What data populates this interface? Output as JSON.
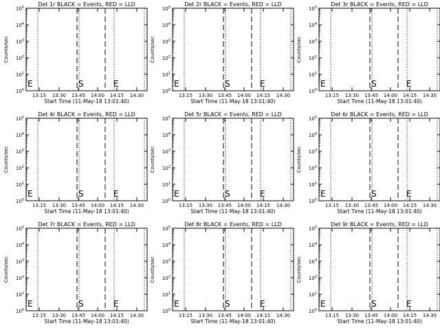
{
  "colors": {
    "background": "#ffffff",
    "foreground": "#000000"
  },
  "start_time_label": "Start Time (11-May-18 13:01:40)",
  "ylabel": "Counts/sec",
  "chart_data": [
    {
      "type": "line",
      "title": "Det 1r BLACK = Events, RED = LLD",
      "xticks": [
        "13:15",
        "13:30",
        "13:45",
        "14:00",
        "14:15",
        "14:30"
      ],
      "ytick_exponents": [
        "0",
        "1",
        "2",
        "3",
        "4",
        "5"
      ],
      "ylim": [
        1,
        100000
      ],
      "series": [],
      "markers": [
        {
          "label": "E"
        },
        {
          "label": "S"
        },
        {
          "label": "E"
        }
      ]
    },
    {
      "type": "line",
      "title": "Det 2r BLACK = Events, RED = LLD",
      "xticks": [
        "13:15",
        "13:30",
        "13:45",
        "14:00",
        "14:15",
        "14:30"
      ],
      "ytick_exponents": [
        "0",
        "1",
        "2",
        "3",
        "4",
        "5"
      ],
      "ylim": [
        1,
        100000
      ],
      "series": [],
      "markers": [
        {
          "label": "E"
        },
        {
          "label": "S"
        },
        {
          "label": "E"
        }
      ]
    },
    {
      "type": "line",
      "title": "Det 3r BLACK = Events, RED = LLD",
      "xticks": [
        "13:15",
        "13:30",
        "13:45",
        "14:00",
        "14:15",
        "14:30"
      ],
      "ytick_exponents": [
        "0",
        "1",
        "2",
        "3",
        "4",
        "5"
      ],
      "ylim": [
        1,
        100000
      ],
      "series": [],
      "markers": [
        {
          "label": "E"
        },
        {
          "label": "S"
        },
        {
          "label": "E"
        }
      ]
    },
    {
      "type": "line",
      "title": "Det 4r BLACK = Events, RED = LLD",
      "xticks": [
        "13:15",
        "13:30",
        "13:45",
        "14:00",
        "14:15",
        "14:30"
      ],
      "ytick_exponents": [
        "0",
        "1",
        "2",
        "3",
        "4",
        "5"
      ],
      "ylim": [
        1,
        100000
      ],
      "series": [],
      "markers": [
        {
          "label": "E"
        },
        {
          "label": "S"
        },
        {
          "label": "E"
        }
      ]
    },
    {
      "type": "line",
      "title": "Det 5r BLACK = Events, RED = LLD",
      "xticks": [
        "13:15",
        "13:30",
        "13:45",
        "14:00",
        "14:15",
        "14:30"
      ],
      "ytick_exponents": [
        "0",
        "1",
        "2",
        "3",
        "4",
        "5"
      ],
      "ylim": [
        1,
        100000
      ],
      "series": [],
      "markers": [
        {
          "label": "E"
        },
        {
          "label": "S"
        },
        {
          "label": "E"
        }
      ]
    },
    {
      "type": "line",
      "title": "Det 6r BLACK = Events, RED = LLD",
      "xticks": [
        "13:15",
        "13:30",
        "13:45",
        "14:00",
        "14:15",
        "14:30"
      ],
      "ytick_exponents": [
        "0",
        "1",
        "2",
        "3",
        "4",
        "5"
      ],
      "ylim": [
        1,
        100000
      ],
      "series": [],
      "markers": [
        {
          "label": "E"
        },
        {
          "label": "S"
        },
        {
          "label": "E"
        }
      ]
    },
    {
      "type": "line",
      "title": "Det 7r BLACK = Events, RED = LLD",
      "xticks": [
        "13:15",
        "13:30",
        "13:45",
        "14:00",
        "14:15",
        "14:30"
      ],
      "ytick_exponents": [
        "0",
        "1",
        "2",
        "3",
        "4",
        "5"
      ],
      "ylim": [
        1,
        100000
      ],
      "series": [],
      "markers": [
        {
          "label": "E"
        },
        {
          "label": "S"
        },
        {
          "label": "E"
        }
      ]
    },
    {
      "type": "line",
      "title": "Det 8r BLACK = Events, RED = LLD",
      "xticks": [
        "13:15",
        "13:30",
        "13:45",
        "14:00",
        "14:15",
        "14:30"
      ],
      "ytick_exponents": [
        "0",
        "1",
        "2",
        "3",
        "4",
        "5"
      ],
      "ylim": [
        1,
        100000
      ],
      "series": [],
      "markers": [
        {
          "label": "E"
        },
        {
          "label": "S"
        },
        {
          "label": "E"
        }
      ]
    },
    {
      "type": "line",
      "title": "Det 9r BLACK = Events, RED = LLD",
      "xticks": [
        "13:15",
        "13:30",
        "13:45",
        "14:00",
        "14:15",
        "14:30"
      ],
      "ytick_exponents": [
        "0",
        "1",
        "2",
        "3",
        "4",
        "5"
      ],
      "ylim": [
        1,
        100000
      ],
      "series": [],
      "markers": [
        {
          "label": "E"
        },
        {
          "label": "S"
        },
        {
          "label": "E"
        }
      ]
    }
  ]
}
